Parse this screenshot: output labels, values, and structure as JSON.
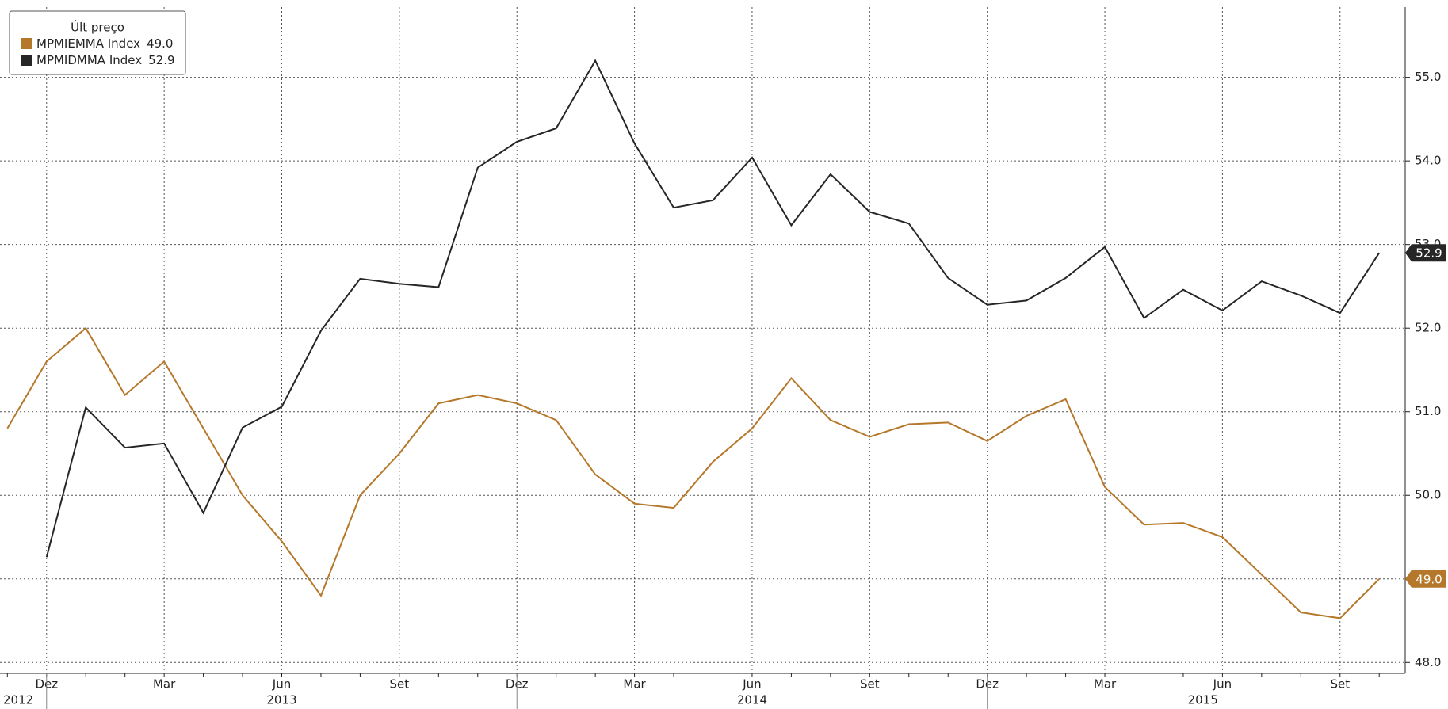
{
  "chart_data": {
    "type": "line",
    "legend_title": "Últ preço",
    "categories": [
      null,
      "Dez",
      null,
      null,
      "Mar",
      null,
      null,
      "Jun",
      null,
      null,
      "Set",
      null,
      null,
      "Dez",
      null,
      null,
      "Mar",
      null,
      null,
      "Jun",
      null,
      null,
      "Set",
      null,
      null,
      "Dez",
      null,
      null,
      "Mar",
      null,
      null,
      "Jun",
      null,
      null,
      "Set",
      null
    ],
    "years": [
      "2012",
      "2013",
      "2014",
      "2015"
    ],
    "series": [
      {
        "name": "MPMIEMMA Index",
        "color": "#b5782a",
        "last_label": "49.0",
        "values": [
          50.8,
          51.6,
          52.0,
          51.2,
          51.6,
          50.8,
          50.0,
          49.45,
          48.8,
          50.0,
          50.5,
          51.1,
          51.2,
          51.1,
          50.9,
          50.25,
          49.9,
          49.85,
          50.4,
          50.8,
          51.4,
          50.9,
          50.7,
          50.85,
          50.87,
          50.65,
          50.95,
          51.15,
          50.1,
          49.65,
          49.67,
          49.5,
          49.05,
          48.6,
          48.53,
          49.0
        ]
      },
      {
        "name": "MPMIDMMA Index",
        "color": "#262626",
        "last_label": "52.9",
        "values": [
          null,
          49.26,
          51.05,
          50.57,
          50.62,
          49.79,
          50.81,
          51.06,
          51.97,
          52.59,
          52.53,
          52.49,
          53.92,
          54.23,
          54.39,
          55.2,
          54.21,
          53.44,
          53.53,
          54.04,
          53.23,
          53.84,
          53.39,
          53.25,
          52.6,
          52.28,
          52.33,
          52.6,
          52.97,
          52.12,
          52.46,
          52.21,
          52.56,
          52.39,
          52.18,
          52.9
        ]
      }
    ],
    "ylim": [
      47.87,
      55.84
    ],
    "yticks": [
      {
        "value": 48,
        "label": "48.0"
      },
      {
        "value": 49,
        "label": "49.0"
      },
      {
        "value": 50,
        "label": "50.0"
      },
      {
        "value": 51,
        "label": "51.0"
      },
      {
        "value": 52,
        "label": "52.0"
      },
      {
        "value": 53,
        "label": "53.0"
      },
      {
        "value": 54,
        "label": "54.0"
      },
      {
        "value": 55,
        "label": "55.0"
      }
    ],
    "grid": true,
    "legend": "upper left"
  }
}
